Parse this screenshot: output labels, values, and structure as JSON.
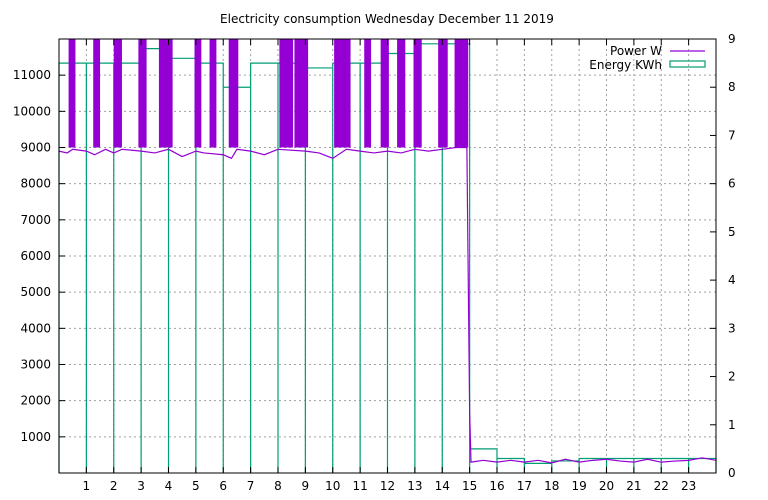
{
  "chart_data": {
    "type": "line",
    "title": "Electricity consumption Wednesday December 11 2019",
    "xlabel": "",
    "ylabel": "",
    "y2label": "",
    "xlim": [
      0,
      24
    ],
    "ylim": [
      0,
      12000
    ],
    "y2lim": [
      0,
      9
    ],
    "x_ticks": [
      1,
      2,
      3,
      4,
      5,
      6,
      7,
      8,
      9,
      10,
      11,
      12,
      13,
      14,
      15,
      16,
      17,
      18,
      19,
      20,
      21,
      22,
      23
    ],
    "y_ticks": [
      1000,
      2000,
      3000,
      4000,
      5000,
      6000,
      7000,
      8000,
      9000,
      10000,
      11000
    ],
    "y2_ticks": [
      0,
      1,
      2,
      3,
      4,
      5,
      6,
      7,
      8,
      9
    ],
    "grid": true,
    "legend_position": "top-right",
    "colors": {
      "power": "#9400d3",
      "energy": "#009e73"
    },
    "series": [
      {
        "name": "Power W",
        "axis": "left",
        "style": "line",
        "baseline_points": [
          [
            0.0,
            8900
          ],
          [
            0.3,
            8850
          ],
          [
            0.5,
            8950
          ],
          [
            1.0,
            8900
          ],
          [
            1.3,
            8800
          ],
          [
            1.7,
            8950
          ],
          [
            2.0,
            8850
          ],
          [
            2.3,
            8950
          ],
          [
            3.0,
            8900
          ],
          [
            3.5,
            8850
          ],
          [
            4.0,
            8950
          ],
          [
            4.5,
            8750
          ],
          [
            5.0,
            8900
          ],
          [
            5.3,
            8850
          ],
          [
            6.0,
            8800
          ],
          [
            6.3,
            8700
          ],
          [
            6.5,
            8950
          ],
          [
            7.0,
            8900
          ],
          [
            7.5,
            8800
          ],
          [
            8.0,
            8950
          ],
          [
            9.0,
            8900
          ],
          [
            9.5,
            8850
          ],
          [
            10.0,
            8700
          ],
          [
            10.5,
            8950
          ],
          [
            11.0,
            8900
          ],
          [
            11.5,
            8850
          ],
          [
            12.0,
            8900
          ],
          [
            12.5,
            8850
          ],
          [
            13.0,
            8950
          ],
          [
            13.5,
            8900
          ],
          [
            14.0,
            8950
          ],
          [
            14.5,
            9000
          ],
          [
            14.9,
            9000
          ],
          [
            15.0,
            1700
          ],
          [
            15.05,
            300
          ],
          [
            15.5,
            350
          ],
          [
            16.0,
            300
          ],
          [
            16.5,
            350
          ],
          [
            17.0,
            300
          ],
          [
            17.5,
            350
          ],
          [
            18.0,
            280
          ],
          [
            18.5,
            380
          ],
          [
            19.0,
            300
          ],
          [
            19.5,
            350
          ],
          [
            20.0,
            380
          ],
          [
            20.5,
            330
          ],
          [
            21.0,
            300
          ],
          [
            21.5,
            380
          ],
          [
            22.0,
            300
          ],
          [
            22.5,
            330
          ],
          [
            23.0,
            350
          ],
          [
            23.5,
            420
          ],
          [
            24.0,
            350
          ]
        ],
        "spike_intervals": [
          [
            0.35,
            0.6
          ],
          [
            1.25,
            1.5
          ],
          [
            2.0,
            2.3
          ],
          [
            2.9,
            3.2
          ],
          [
            3.65,
            4.15
          ],
          [
            4.95,
            5.2
          ],
          [
            5.5,
            5.75
          ],
          [
            6.2,
            6.55
          ],
          [
            8.05,
            8.55
          ],
          [
            8.6,
            9.1
          ],
          [
            10.05,
            10.65
          ],
          [
            11.15,
            11.4
          ],
          [
            11.75,
            12.05
          ],
          [
            12.35,
            12.65
          ],
          [
            12.95,
            13.25
          ],
          [
            13.85,
            14.2
          ],
          [
            14.45,
            14.95
          ]
        ],
        "spike_value": 12000
      },
      {
        "name": "Energy KWh",
        "axis": "right",
        "style": "steps",
        "values": [
          8.5,
          8.5,
          8.5,
          8.8,
          8.6,
          8.5,
          8.0,
          8.5,
          8.5,
          8.4,
          8.5,
          8.5,
          8.7,
          8.9,
          8.9,
          0.5,
          0.3,
          0.2,
          0.25,
          0.3,
          0.3,
          0.3,
          0.3,
          0.3
        ]
      }
    ]
  }
}
